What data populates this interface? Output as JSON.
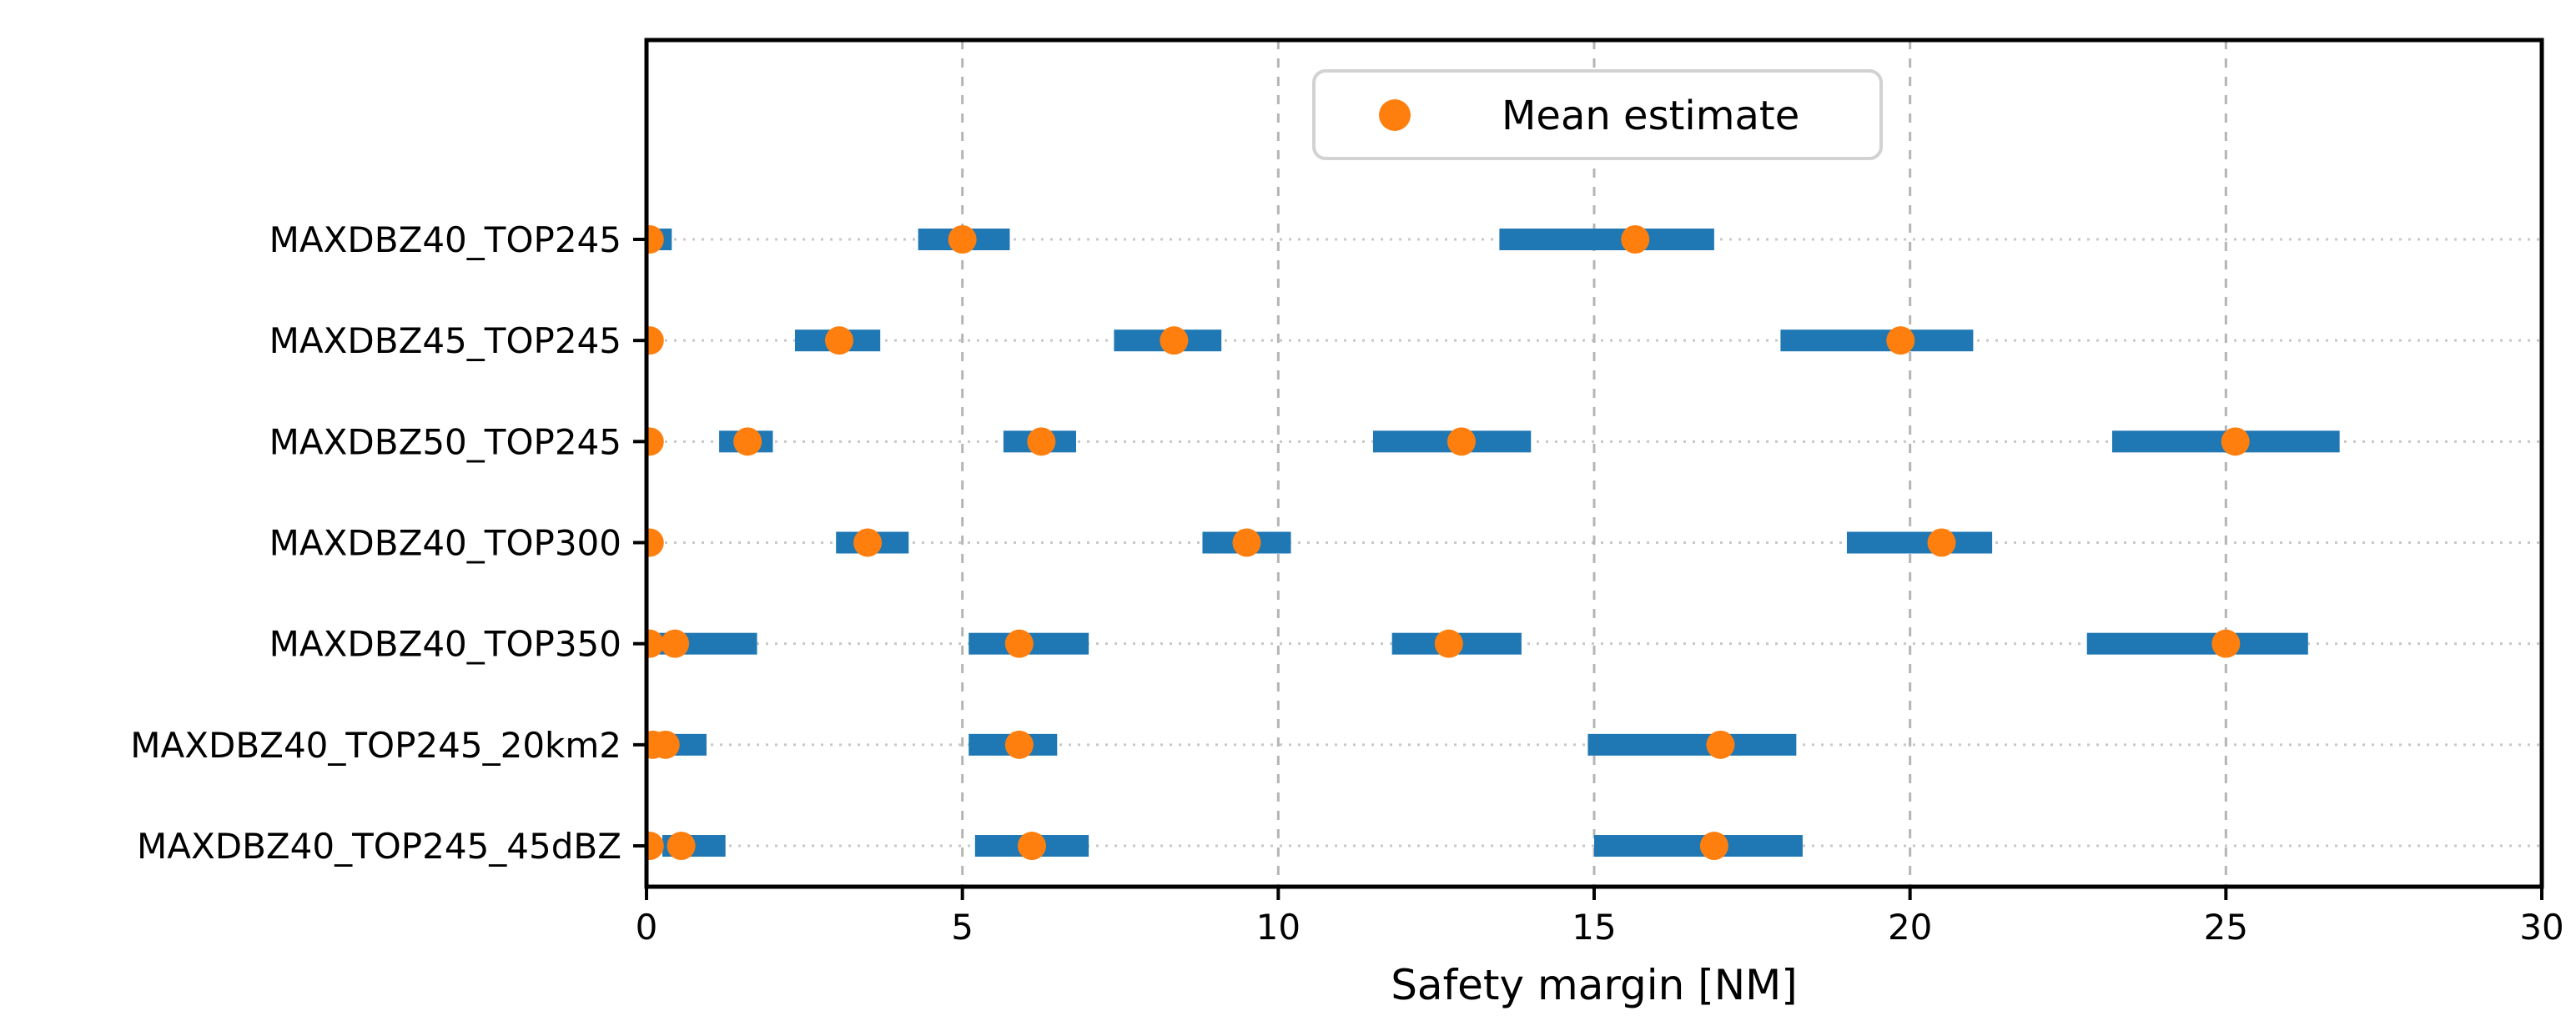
{
  "chart_data": {
    "type": "range_dot",
    "xlabel": "Safety margin [NM]",
    "xlim": [
      0,
      30
    ],
    "x_ticks": [
      0,
      5,
      10,
      15,
      20,
      25,
      30
    ],
    "grid": {
      "vertical_style": "dashed",
      "horizontal_style": "dotted",
      "legend_position": "top-center"
    },
    "legend": {
      "label": "Mean estimate"
    },
    "colors": {
      "bar": "#1f77b4",
      "mean_dot": "#ff7f0e",
      "vertical_grid": "#b5b5b5",
      "row_line": "#c8c8c8",
      "spine": "#000000",
      "legend_border": "#d2d2d2",
      "background": "#ffffff"
    },
    "rows": [
      {
        "label": "MAXDBZ40_TOP245",
        "intervals": [
          {
            "low": 0.0,
            "high": 0.4,
            "mean": 0.05
          },
          {
            "low": 4.3,
            "high": 5.75,
            "mean": 5.0
          },
          {
            "low": 13.5,
            "high": 16.9,
            "mean": 15.65
          }
        ]
      },
      {
        "label": "MAXDBZ45_TOP245",
        "intervals": [
          {
            "low": 0.0,
            "high": 0.1,
            "mean": 0.05
          },
          {
            "low": 2.35,
            "high": 3.7,
            "mean": 3.05
          },
          {
            "low": 7.4,
            "high": 9.1,
            "mean": 8.35
          },
          {
            "low": 17.95,
            "high": 21.0,
            "mean": 19.85
          }
        ]
      },
      {
        "label": "MAXDBZ50_TOP245",
        "intervals": [
          {
            "low": 0.0,
            "high": 0.1,
            "mean": 0.05
          },
          {
            "low": 1.15,
            "high": 2.0,
            "mean": 1.6
          },
          {
            "low": 5.65,
            "high": 6.8,
            "mean": 6.25
          },
          {
            "low": 11.5,
            "high": 14.0,
            "mean": 12.9
          },
          {
            "low": 23.2,
            "high": 26.8,
            "mean": 25.15
          }
        ]
      },
      {
        "label": "MAXDBZ40_TOP300",
        "intervals": [
          {
            "low": 0.0,
            "high": 0.1,
            "mean": 0.05
          },
          {
            "low": 3.0,
            "high": 4.15,
            "mean": 3.5
          },
          {
            "low": 8.8,
            "high": 10.2,
            "mean": 9.5
          },
          {
            "low": 19.0,
            "high": 21.3,
            "mean": 20.5
          }
        ]
      },
      {
        "label": "MAXDBZ40_TOP350",
        "intervals": [
          {
            "low": 0.0,
            "high": 0.1,
            "mean": 0.05
          },
          {
            "low": 0.15,
            "high": 1.75,
            "mean": 0.45
          },
          {
            "low": 5.1,
            "high": 7.0,
            "mean": 5.9
          },
          {
            "low": 11.8,
            "high": 13.85,
            "mean": 12.7
          },
          {
            "low": 22.8,
            "high": 26.3,
            "mean": 25.0
          }
        ]
      },
      {
        "label": "MAXDBZ40_TOP245_20km2",
        "intervals": [
          {
            "low": 0.0,
            "high": 0.1,
            "mean": 0.1
          },
          {
            "low": 0.15,
            "high": 0.95,
            "mean": 0.3
          },
          {
            "low": 5.1,
            "high": 6.5,
            "mean": 5.9
          },
          {
            "low": 14.9,
            "high": 18.2,
            "mean": 17.0
          }
        ]
      },
      {
        "label": "MAXDBZ40_TOP245_45dBZ",
        "intervals": [
          {
            "low": 0.0,
            "high": 0.1,
            "mean": 0.05
          },
          {
            "low": 0.25,
            "high": 1.25,
            "mean": 0.55
          },
          {
            "low": 5.2,
            "high": 7.0,
            "mean": 6.1
          },
          {
            "low": 15.0,
            "high": 18.3,
            "mean": 16.9
          }
        ]
      }
    ]
  }
}
